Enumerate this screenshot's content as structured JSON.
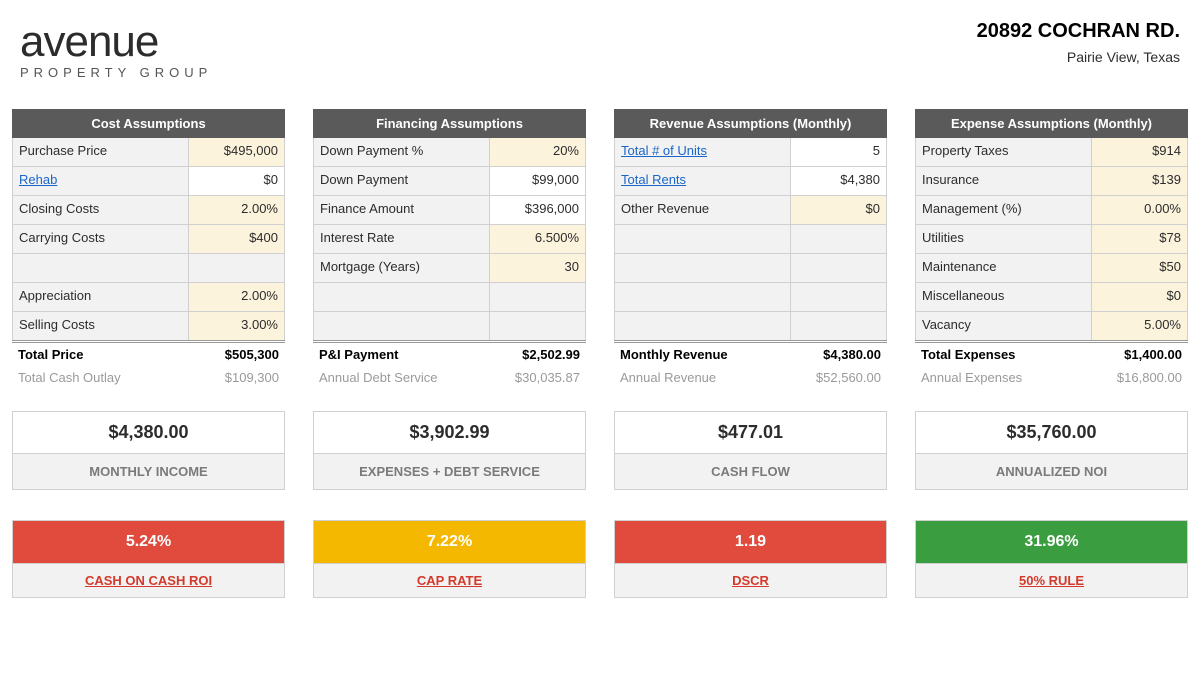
{
  "brand": {
    "name": "avenue",
    "sub": "PROPERTY GROUP"
  },
  "address": {
    "line1": "20892 COCHRAN RD.",
    "line2": "Pairie View, Texas"
  },
  "colors": {
    "red": "#e04b3d",
    "yellow": "#f5b800",
    "green": "#3a9d3f",
    "red_text": "#d33a2c"
  },
  "panels": {
    "cost": {
      "title": "Cost Assumptions",
      "rows": [
        {
          "label": "Purchase Price",
          "value": "$495,000",
          "editable": true
        },
        {
          "label": "Rehab",
          "value": "$0",
          "link": true
        },
        {
          "label": "Closing Costs",
          "value": "2.00%",
          "editable": true
        },
        {
          "label": "Carrying Costs",
          "value": "$400",
          "editable": true
        },
        {
          "blank": true
        },
        {
          "label": "Appreciation",
          "value": "2.00%",
          "editable": true
        },
        {
          "label": "Selling Costs",
          "value": "3.00%",
          "editable": true
        }
      ],
      "totals": [
        {
          "label": "Total Price",
          "value": "$505,300",
          "bold": true
        },
        {
          "label": "Total Cash Outlay",
          "value": "$109,300",
          "muted": true
        }
      ]
    },
    "fin": {
      "title": "Financing Assumptions",
      "rows": [
        {
          "label": "Down Payment %",
          "value": "20%",
          "editable": true
        },
        {
          "label": "Down Payment",
          "value": "$99,000"
        },
        {
          "label": "Finance Amount",
          "value": "$396,000"
        },
        {
          "label": "Interest Rate",
          "value": "6.500%",
          "editable": true
        },
        {
          "label": "Mortgage (Years)",
          "value": "30",
          "editable": true
        },
        {
          "blank": true
        },
        {
          "blank": true
        }
      ],
      "totals": [
        {
          "label": "P&I Payment",
          "value": "$2,502.99",
          "bold": true
        },
        {
          "label": "Annual Debt Service",
          "value": "$30,035.87",
          "muted": true
        }
      ]
    },
    "rev": {
      "title": "Revenue Assumptions (Monthly)",
      "rows": [
        {
          "label": "Total # of Units",
          "value": "5",
          "link": true
        },
        {
          "label": "Total Rents",
          "value": "$4,380",
          "link": true
        },
        {
          "label": "Other Revenue",
          "value": "$0",
          "editable": true
        },
        {
          "blank": true
        },
        {
          "blank": true
        },
        {
          "blank": true
        },
        {
          "blank": true
        }
      ],
      "totals": [
        {
          "label": "Monthly Revenue",
          "value": "$4,380.00",
          "bold": true
        },
        {
          "label": "Annual Revenue",
          "value": "$52,560.00",
          "muted": true
        }
      ]
    },
    "exp": {
      "title": "Expense Assumptions (Monthly)",
      "rows": [
        {
          "label": "Property Taxes",
          "value": "$914",
          "editable": true
        },
        {
          "label": "Insurance",
          "value": "$139",
          "editable": true
        },
        {
          "label": "Management (%)",
          "value": "0.00%",
          "editable": true
        },
        {
          "label": "Utilities",
          "value": "$78",
          "editable": true
        },
        {
          "label": "Maintenance",
          "value": "$50",
          "editable": true
        },
        {
          "label": "Miscellaneous",
          "value": "$0",
          "editable": true
        },
        {
          "label": "Vacancy",
          "value": "5.00%",
          "editable": true
        }
      ],
      "totals": [
        {
          "label": "Total Expenses",
          "value": "$1,400.00",
          "bold": true
        },
        {
          "label": "Annual Expenses",
          "value": "$16,800.00",
          "muted": true
        }
      ]
    }
  },
  "bigs": [
    {
      "value": "$4,380.00",
      "label": "MONTHLY INCOME"
    },
    {
      "value": "$3,902.99",
      "label": "EXPENSES + DEBT SERVICE"
    },
    {
      "value": "$477.01",
      "label": "CASH FLOW"
    },
    {
      "value": "$35,760.00",
      "label": "ANNUALIZED NOI"
    }
  ],
  "metrics": [
    {
      "value": "5.24%",
      "label": "CASH ON CASH ROI",
      "bg": "red"
    },
    {
      "value": "7.22%",
      "label": "CAP RATE",
      "bg": "yellow"
    },
    {
      "value": "1.19",
      "label": "DSCR",
      "bg": "red"
    },
    {
      "value": "31.96%",
      "label": "50% RULE",
      "bg": "green"
    }
  ]
}
